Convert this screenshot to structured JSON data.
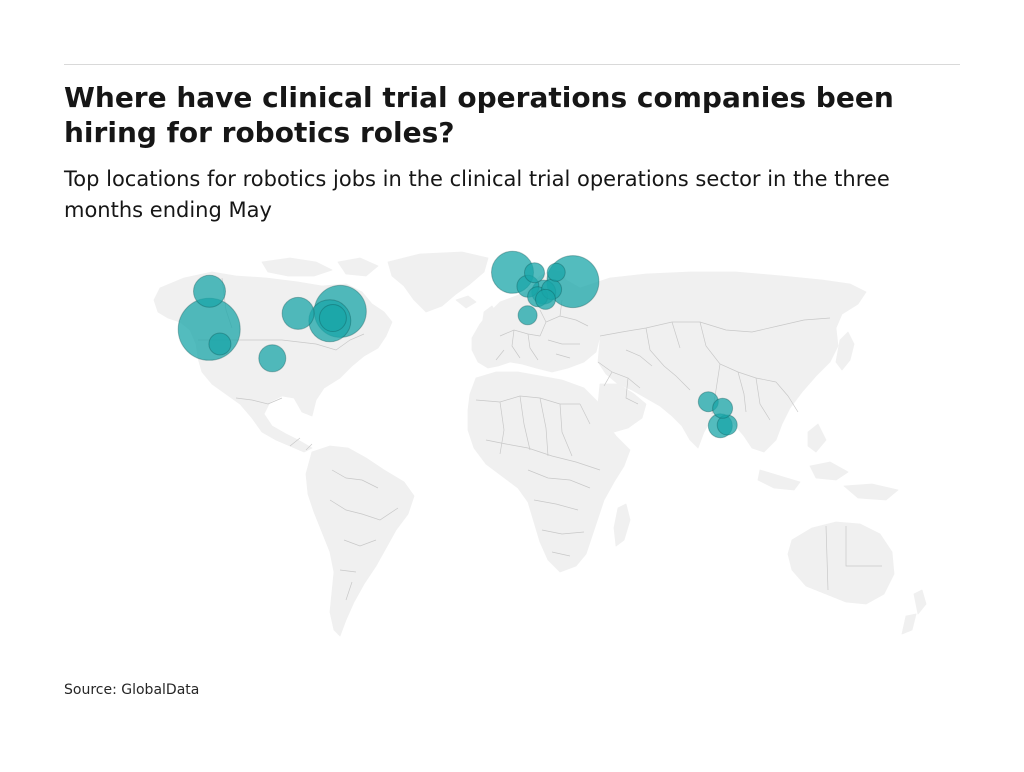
{
  "header": {
    "title": "Where have clinical trial operations companies been hiring for robotics roles?",
    "subtitle": "Top locations for robotics jobs in the clinical trial operations sector in the three months ending May"
  },
  "footer": {
    "source": "Source: GlobalData"
  },
  "colors": {
    "land": "#f0f0f0",
    "borders": "#c8c8c8",
    "bubble": "#1aa6a8",
    "bubble_dark": "#0b4f50"
  },
  "chart_data": {
    "type": "bubble-map",
    "points": [
      {
        "lon": -122.4,
        "lat": 37.8,
        "size": 5
      },
      {
        "lon": -118.2,
        "lat": 34.0,
        "size": 1
      },
      {
        "lon": -122.3,
        "lat": 47.6,
        "size": 2
      },
      {
        "lon": -87.6,
        "lat": 41.9,
        "size": 2
      },
      {
        "lon": -97.7,
        "lat": 30.3,
        "size": 1.5
      },
      {
        "lon": -71.1,
        "lat": 42.4,
        "size": 4
      },
      {
        "lon": -75.2,
        "lat": 40.0,
        "size": 3
      },
      {
        "lon": -74.0,
        "lat": 40.7,
        "size": 1.5
      },
      {
        "lon": -3.7,
        "lat": 52.5,
        "size": 3
      },
      {
        "lon": 2.3,
        "lat": 48.9,
        "size": 1
      },
      {
        "lon": 4.9,
        "lat": 52.4,
        "size": 0.8
      },
      {
        "lon": 8.5,
        "lat": 47.4,
        "size": 1.2
      },
      {
        "lon": 6.1,
        "lat": 46.2,
        "size": 0.8
      },
      {
        "lon": 11.6,
        "lat": 48.1,
        "size": 0.8
      },
      {
        "lon": 13.4,
        "lat": 52.5,
        "size": 0.6
      },
      {
        "lon": 9.2,
        "lat": 45.5,
        "size": 0.8
      },
      {
        "lon": 2.2,
        "lat": 41.4,
        "size": 0.7
      },
      {
        "lon": 19.9,
        "lat": 50.1,
        "size": 4
      },
      {
        "lon": 77.6,
        "lat": 12.9,
        "size": 1.2
      },
      {
        "lon": 80.3,
        "lat": 13.1,
        "size": 0.8
      },
      {
        "lon": 72.9,
        "lat": 19.1,
        "size": 0.8
      },
      {
        "lon": 78.5,
        "lat": 17.4,
        "size": 0.8
      }
    ]
  }
}
